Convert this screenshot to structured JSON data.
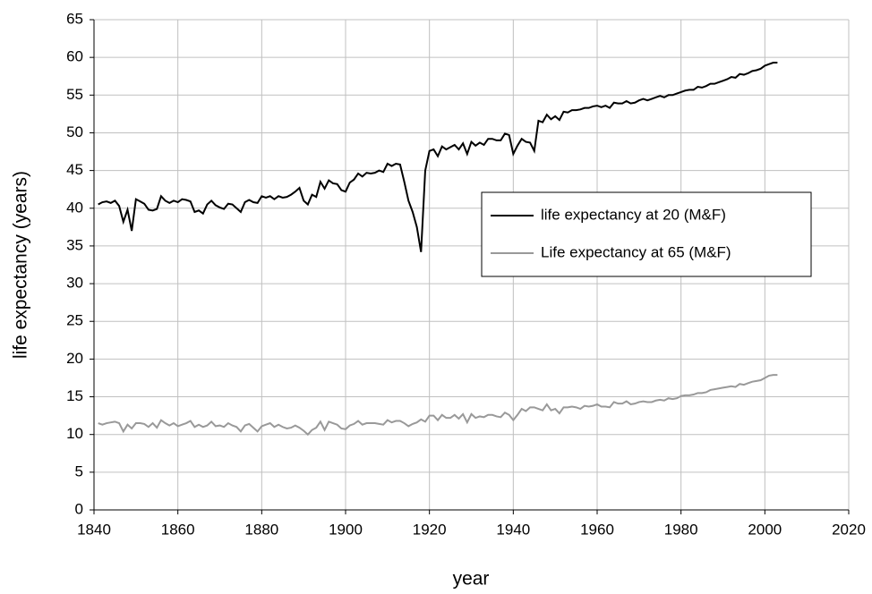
{
  "chart_data": {
    "type": "line",
    "x_label": "year",
    "y_label": "life expectancy (years)",
    "xlim": [
      1840,
      2020
    ],
    "xticks": [
      1840,
      1860,
      1880,
      1900,
      1920,
      1940,
      1960,
      1980,
      2000,
      2020
    ],
    "ylim": [
      0,
      65
    ],
    "yticks": [
      0,
      5,
      10,
      15,
      20,
      25,
      30,
      35,
      40,
      45,
      50,
      55,
      60,
      65
    ],
    "grid": true,
    "legend_position": "right",
    "x": [
      1841,
      1842,
      1843,
      1844,
      1845,
      1846,
      1847,
      1848,
      1849,
      1850,
      1851,
      1852,
      1853,
      1854,
      1855,
      1856,
      1857,
      1858,
      1859,
      1860,
      1861,
      1862,
      1863,
      1864,
      1865,
      1866,
      1867,
      1868,
      1869,
      1870,
      1871,
      1872,
      1873,
      1874,
      1875,
      1876,
      1877,
      1878,
      1879,
      1880,
      1881,
      1882,
      1883,
      1884,
      1885,
      1886,
      1887,
      1888,
      1889,
      1890,
      1891,
      1892,
      1893,
      1894,
      1895,
      1896,
      1897,
      1898,
      1899,
      1900,
      1901,
      1902,
      1903,
      1904,
      1905,
      1906,
      1907,
      1908,
      1909,
      1910,
      1911,
      1912,
      1913,
      1914,
      1915,
      1916,
      1917,
      1918,
      1919,
      1920,
      1921,
      1922,
      1923,
      1924,
      1925,
      1926,
      1927,
      1928,
      1929,
      1930,
      1931,
      1932,
      1933,
      1934,
      1935,
      1936,
      1937,
      1938,
      1939,
      1940,
      1941,
      1942,
      1943,
      1944,
      1945,
      1946,
      1947,
      1948,
      1949,
      1950,
      1951,
      1952,
      1953,
      1954,
      1955,
      1956,
      1957,
      1958,
      1959,
      1960,
      1961,
      1962,
      1963,
      1964,
      1965,
      1966,
      1967,
      1968,
      1969,
      1970,
      1971,
      1972,
      1973,
      1974,
      1975,
      1976,
      1977,
      1978,
      1979,
      1980,
      1981,
      1982,
      1983,
      1984,
      1985,
      1986,
      1987,
      1988,
      1989,
      1990,
      1991,
      1992,
      1993,
      1994,
      1995,
      1996,
      1997,
      1998,
      1999,
      2000,
      2001,
      2002,
      2003
    ],
    "series": [
      {
        "name": "life expectancy at 20 (M&F)",
        "color": "#000000",
        "values": [
          40.5,
          40.8,
          40.9,
          40.7,
          41.0,
          40.3,
          38.2,
          39.8,
          37.0,
          41.2,
          40.9,
          40.6,
          39.8,
          39.7,
          39.9,
          41.6,
          41.0,
          40.7,
          41.0,
          40.8,
          41.2,
          41.1,
          40.9,
          39.5,
          39.7,
          39.3,
          40.5,
          41.0,
          40.4,
          40.1,
          39.9,
          40.6,
          40.5,
          40.0,
          39.5,
          40.8,
          41.1,
          40.8,
          40.7,
          41.6,
          41.4,
          41.6,
          41.2,
          41.6,
          41.4,
          41.5,
          41.8,
          42.2,
          42.7,
          41.0,
          40.5,
          41.8,
          41.5,
          43.5,
          42.6,
          43.7,
          43.3,
          43.2,
          42.4,
          42.2,
          43.4,
          43.8,
          44.6,
          44.2,
          44.7,
          44.6,
          44.7,
          45.0,
          44.8,
          45.9,
          45.6,
          45.9,
          45.8,
          43.5,
          41.0,
          39.5,
          37.5,
          34.2,
          45.0,
          47.6,
          47.8,
          46.9,
          48.2,
          47.8,
          48.1,
          48.4,
          47.8,
          48.6,
          47.2,
          48.8,
          48.3,
          48.7,
          48.4,
          49.2,
          49.2,
          49.0,
          49.0,
          49.9,
          49.7,
          47.2,
          48.3,
          49.2,
          48.8,
          48.7,
          47.6,
          51.6,
          51.4,
          52.4,
          51.8,
          52.2,
          51.7,
          52.8,
          52.7,
          53.0,
          53.0,
          53.1,
          53.3,
          53.3,
          53.5,
          53.6,
          53.4,
          53.6,
          53.3,
          54.0,
          53.9,
          53.9,
          54.2,
          53.9,
          54.0,
          54.3,
          54.5,
          54.3,
          54.5,
          54.7,
          54.9,
          54.7,
          55.0,
          55.0,
          55.2,
          55.4,
          55.6,
          55.7,
          55.7,
          56.1,
          56.0,
          56.2,
          56.5,
          56.5,
          56.7,
          56.9,
          57.1,
          57.4,
          57.3,
          57.8,
          57.7,
          57.9,
          58.2,
          58.3,
          58.5,
          58.9,
          59.1,
          59.3,
          59.3
        ]
      },
      {
        "name": "Life expectancy at 65 (M&F)",
        "color": "#999999",
        "values": [
          11.5,
          11.3,
          11.5,
          11.6,
          11.7,
          11.5,
          10.4,
          11.3,
          10.8,
          11.5,
          11.5,
          11.4,
          11.0,
          11.5,
          10.9,
          11.9,
          11.5,
          11.2,
          11.5,
          11.1,
          11.3,
          11.5,
          11.8,
          11.0,
          11.3,
          11.0,
          11.2,
          11.7,
          11.1,
          11.2,
          11.0,
          11.5,
          11.2,
          11.0,
          10.4,
          11.2,
          11.4,
          10.9,
          10.4,
          11.1,
          11.3,
          11.5,
          11.0,
          11.3,
          11.0,
          10.8,
          10.9,
          11.2,
          10.9,
          10.5,
          10.0,
          10.6,
          10.9,
          11.7,
          10.6,
          11.7,
          11.5,
          11.3,
          10.8,
          10.7,
          11.2,
          11.4,
          11.8,
          11.3,
          11.5,
          11.5,
          11.5,
          11.4,
          11.3,
          11.9,
          11.6,
          11.8,
          11.8,
          11.5,
          11.1,
          11.4,
          11.6,
          12.0,
          11.7,
          12.5,
          12.5,
          11.9,
          12.6,
          12.2,
          12.2,
          12.6,
          12.1,
          12.7,
          11.6,
          12.7,
          12.2,
          12.4,
          12.3,
          12.6,
          12.6,
          12.4,
          12.3,
          12.9,
          12.6,
          11.9,
          12.6,
          13.4,
          13.1,
          13.6,
          13.6,
          13.4,
          13.2,
          14.0,
          13.2,
          13.4,
          12.8,
          13.6,
          13.6,
          13.7,
          13.6,
          13.4,
          13.8,
          13.7,
          13.8,
          14.0,
          13.7,
          13.7,
          13.6,
          14.3,
          14.1,
          14.1,
          14.4,
          14.0,
          14.1,
          14.3,
          14.4,
          14.3,
          14.3,
          14.5,
          14.6,
          14.5,
          14.8,
          14.7,
          14.8,
          15.1,
          15.2,
          15.2,
          15.3,
          15.5,
          15.5,
          15.6,
          15.9,
          16.0,
          16.1,
          16.2,
          16.3,
          16.4,
          16.3,
          16.7,
          16.6,
          16.8,
          17.0,
          17.1,
          17.2,
          17.5,
          17.8,
          17.9,
          17.9
        ]
      }
    ]
  }
}
